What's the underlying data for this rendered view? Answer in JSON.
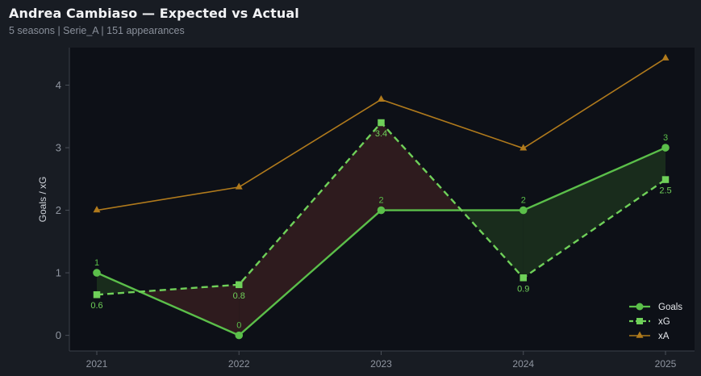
{
  "header": {
    "title": "Andrea Cambiaso — Expected vs Actual",
    "subtitle": "5 seasons | Serie_A | 151 appearances"
  },
  "colors": {
    "goals": "#5bbf4a",
    "xg": "#6fd059",
    "xa": "#b07a1c",
    "over_fill": "#1a2e1c",
    "under_fill": "#301c1f",
    "plot_bg": "#0d1017",
    "page_bg": "#181c23"
  },
  "chart_data": {
    "type": "line",
    "title": "Andrea Cambiaso — Expected vs Actual",
    "xlabel": "",
    "ylabel": "Goals / xG",
    "x": [
      "2021",
      "2022",
      "2023",
      "2024",
      "2025"
    ],
    "ylim": [
      -0.25,
      4.6
    ],
    "yticks": [
      0,
      1,
      2,
      3,
      4
    ],
    "grid": false,
    "legend_position": "bottom-right",
    "series": [
      {
        "name": "Goals",
        "values": [
          1,
          0,
          2,
          2,
          3
        ],
        "labels": [
          "1",
          "0",
          "2",
          "2",
          "3"
        ],
        "marker": "circle",
        "line": "solid"
      },
      {
        "name": "xG",
        "values": [
          0.65,
          0.81,
          3.4,
          0.92,
          2.49
        ],
        "labels": [
          "0.6",
          "0.8",
          "3.4",
          "0.9",
          "2.5"
        ],
        "marker": "square",
        "line": "dashed"
      },
      {
        "name": "xA",
        "values": [
          2.0,
          2.37,
          3.77,
          2.99,
          4.43
        ],
        "marker": "triangle",
        "line": "solid"
      }
    ]
  }
}
